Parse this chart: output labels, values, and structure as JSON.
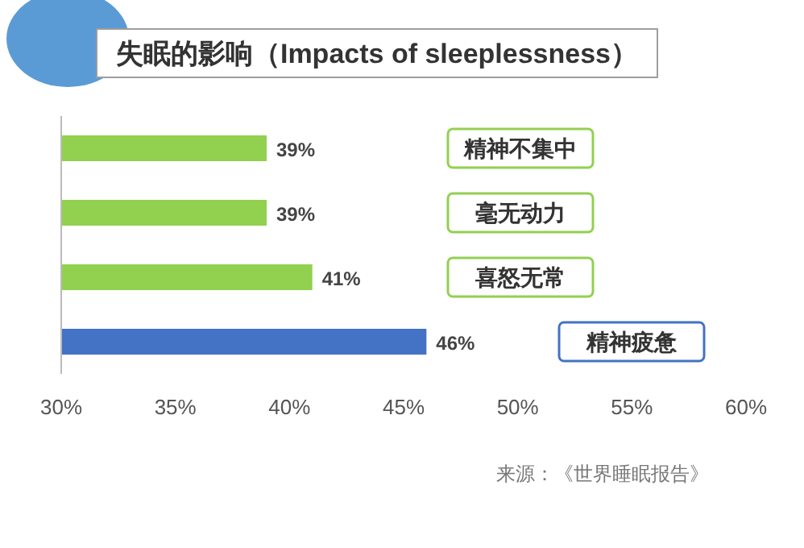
{
  "chart_data": {
    "type": "bar",
    "orientation": "horizontal",
    "title": "失眠的影响（Impacts of sleeplessness）",
    "categories": [
      "精神不集中",
      "毫无动力",
      "喜怒无常",
      "精神疲惫"
    ],
    "values": [
      39,
      39,
      41,
      46
    ],
    "colors": [
      "#92d050",
      "#92d050",
      "#92d050",
      "#4472c4"
    ],
    "value_labels": [
      "39%",
      "39%",
      "41%",
      "46%"
    ],
    "xlim": [
      30,
      60
    ],
    "xticks": [
      {
        "value": 30,
        "label": "30%"
      },
      {
        "value": 35,
        "label": "35%"
      },
      {
        "value": 40,
        "label": "40%"
      },
      {
        "value": 45,
        "label": "45%"
      },
      {
        "value": 50,
        "label": "50%"
      },
      {
        "value": 55,
        "label": "55%"
      },
      {
        "value": 60,
        "label": "60%"
      }
    ],
    "annotations": [
      "来源：《世界睡眠报告》"
    ]
  }
}
